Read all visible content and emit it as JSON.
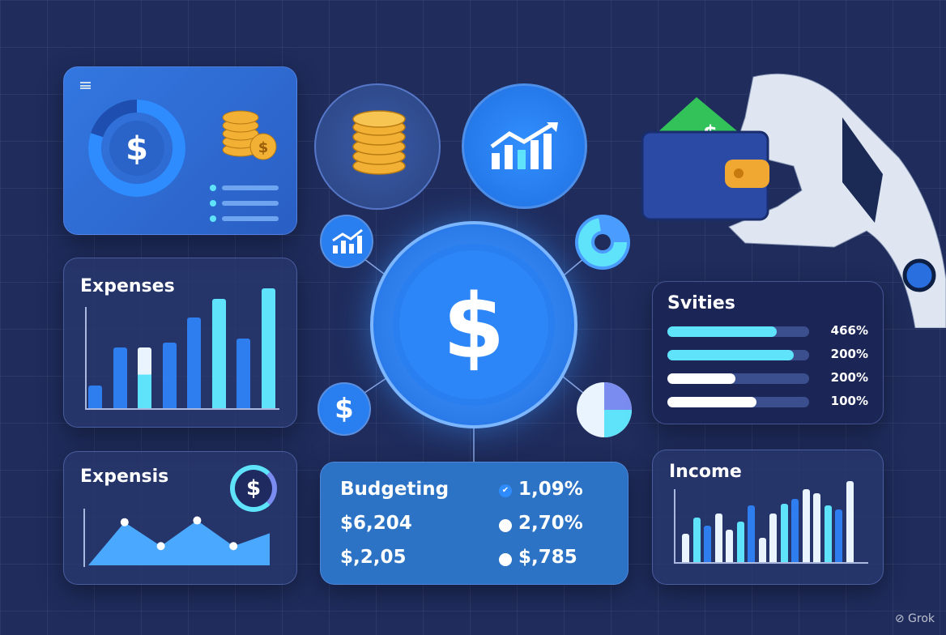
{
  "colors": {
    "background": "#1f2c5c",
    "accent": "#2f7ef0",
    "cyan": "#5fe3fb",
    "light": "#eaf4ff"
  },
  "top_card": {
    "icons": [
      "menu-icon",
      "dollar-donut-icon",
      "coin-stack-icon"
    ],
    "donut_fraction": 0.8,
    "list_items": 3
  },
  "coins_circle": {
    "icon": "coin-stack-icon"
  },
  "growth_circle": {
    "icon": "growth-chart-icon"
  },
  "center_coin": {
    "symbol": "$"
  },
  "small_icons": {
    "top_left": "growth-chart-icon",
    "top_right": "donut-icon",
    "bottom_left": "$",
    "bottom_right": "pie-chart-icon"
  },
  "expenses": {
    "title": "Expenses",
    "bars": [
      0.19,
      0.51,
      0.51,
      0.55,
      0.76,
      0.91,
      0.58,
      1.0
    ]
  },
  "expensis": {
    "title": "Expensis",
    "symbol": "$",
    "line_points": [
      0,
      0.74,
      0.33,
      0.77,
      0.33,
      0.55
    ]
  },
  "budgeting": {
    "title": "Budgeting",
    "left_values": [
      "$6,204",
      "$,2,05"
    ],
    "right_values": [
      "1,09%",
      "2,70%",
      "$,785"
    ]
  },
  "svities": {
    "title": "Svities",
    "rows": [
      {
        "fill": 0.77,
        "color": "#5fe3fb",
        "value": "466%"
      },
      {
        "fill": 0.89,
        "color": "#5fe3fb",
        "value": "200%"
      },
      {
        "fill": 0.48,
        "color": "#ffffff",
        "value": "200%"
      },
      {
        "fill": 0.63,
        "color": "#ffffff",
        "value": "100%"
      }
    ]
  },
  "income": {
    "title": "Income",
    "bars": [
      0.35,
      0.55,
      0.45,
      0.6,
      0.4,
      0.5,
      0.7,
      0.3,
      0.6,
      0.72,
      0.78,
      0.9,
      0.85,
      0.7,
      0.65,
      1.0
    ]
  },
  "watermark": "Grok"
}
